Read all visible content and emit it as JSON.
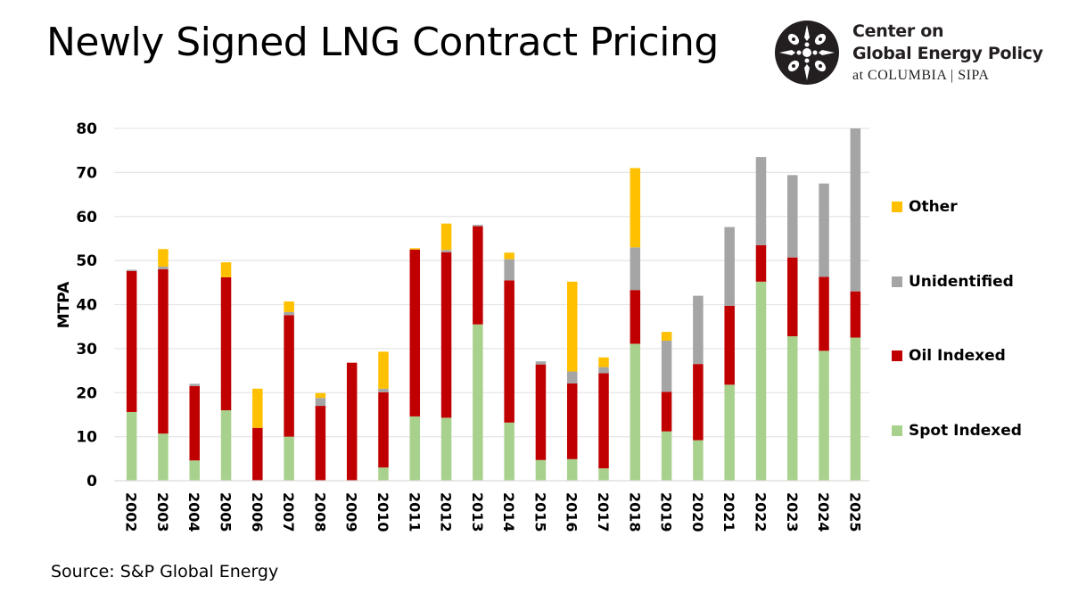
{
  "title": "Newly Signed LNG Contract Pricing",
  "logo": {
    "icon": "columbia-rose-window-icon",
    "line1": "Center on",
    "line2": "Global Energy Policy",
    "line3": "at COLUMBIA | SIPA"
  },
  "source": "Source: S&P Global Energy",
  "colors": {
    "Spot Indexed": "#a9d18e",
    "Oil Indexed": "#c00000",
    "Unidentified": "#a5a5a5",
    "Other": "#ffc000",
    "gridline": "#e6e6e6"
  },
  "legend": [
    {
      "label": "Other",
      "color": "#ffc000"
    },
    {
      "label": "Unidentified",
      "color": "#a5a5a5"
    },
    {
      "label": "Oil Indexed",
      "color": "#c00000"
    },
    {
      "label": "Spot Indexed",
      "color": "#a9d18e"
    }
  ],
  "chart_data": {
    "type": "bar",
    "stacked": true,
    "title": "Newly Signed LNG Contract Pricing",
    "xlabel": "",
    "ylabel": "MTPA",
    "ylim": [
      0,
      80
    ],
    "yticks": [
      0,
      10,
      20,
      30,
      40,
      50,
      60,
      70,
      80
    ],
    "grid": true,
    "legend_position": "right",
    "categories": [
      "2002",
      "2003",
      "2004",
      "2005",
      "2006",
      "2007",
      "2008",
      "2009",
      "2010",
      "2011",
      "2012",
      "2013",
      "2014",
      "2015",
      "2016",
      "2017",
      "2018",
      "2019",
      "2020",
      "2021",
      "2022",
      "2023",
      "2024",
      "2025"
    ],
    "series": [
      {
        "name": "Spot Indexed",
        "values": [
          15.6,
          10.7,
          4.6,
          16.0,
          0.0,
          10.0,
          0.0,
          0.0,
          3.0,
          14.6,
          14.3,
          35.5,
          13.2,
          4.7,
          4.9,
          2.8,
          31.1,
          11.2,
          9.2,
          21.8,
          45.2,
          32.8,
          29.5,
          32.5
        ]
      },
      {
        "name": "Oil Indexed",
        "values": [
          32.0,
          37.3,
          16.9,
          30.2,
          12.0,
          27.6,
          17.0,
          26.8,
          17.1,
          37.9,
          37.6,
          22.3,
          32.3,
          21.7,
          17.2,
          21.6,
          12.2,
          9.0,
          17.3,
          17.9,
          8.3,
          17.9,
          16.8,
          10.5
        ]
      },
      {
        "name": "Unidentified",
        "values": [
          0.3,
          0.6,
          0.5,
          0.0,
          0.0,
          0.7,
          1.8,
          0.0,
          0.8,
          0.0,
          0.5,
          0.3,
          4.8,
          0.7,
          2.7,
          1.4,
          9.7,
          11.6,
          15.5,
          17.9,
          20.0,
          18.7,
          21.2,
          37.0
        ]
      },
      {
        "name": "Other",
        "values": [
          0.0,
          4.0,
          0.0,
          3.4,
          8.9,
          2.4,
          1.1,
          0.0,
          8.4,
          0.3,
          6.0,
          0.0,
          1.5,
          0.0,
          20.4,
          2.2,
          18.0,
          2.0,
          0.0,
          0.0,
          0.0,
          0.0,
          0.0,
          0.0
        ]
      }
    ],
    "totals": [
      47.9,
      52.6,
      22.0,
      49.6,
      20.9,
      40.7,
      19.9,
      26.8,
      29.3,
      52.8,
      58.4,
      58.1,
      51.8,
      27.1,
      45.2,
      28.0,
      71.0,
      33.8,
      42.0,
      57.6,
      73.5,
      69.4,
      67.5,
      80.0
    ]
  }
}
